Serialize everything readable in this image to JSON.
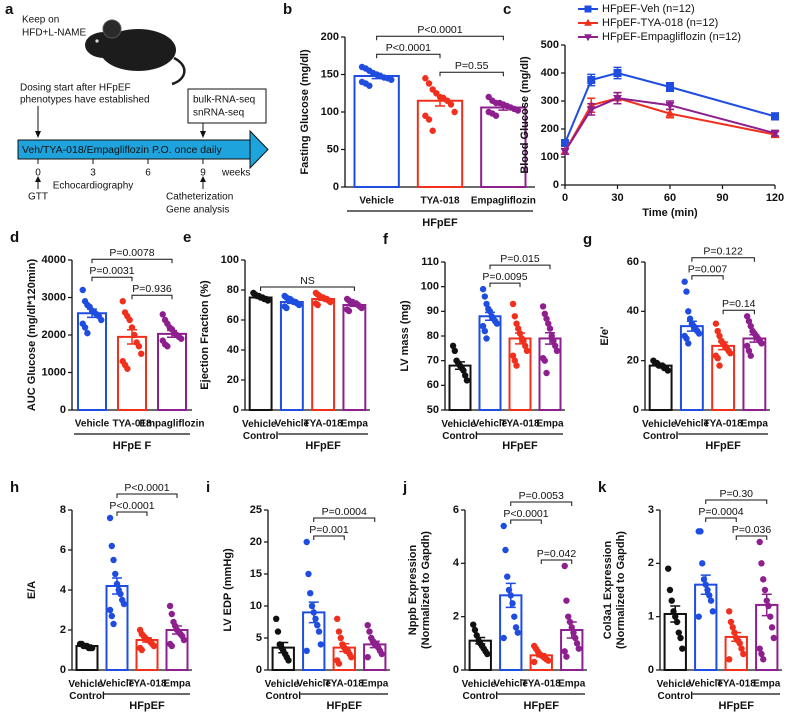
{
  "schematic": {
    "panel": "a",
    "diet": [
      "Keep on",
      "HFD+L-NAME"
    ],
    "dosing_note": [
      "Dosing start after HFpEF",
      "phenotypes have established"
    ],
    "sequencing": [
      "bulk-RNA-seq",
      "snRNA-seq"
    ],
    "treatment": "Veh/TYA-018/Empagliflozin P.O. once daily",
    "week_ticks": [
      0,
      3,
      6,
      9
    ],
    "week_unit": "weeks",
    "gtt": "GTT",
    "echo": "Echocardiography",
    "terminal": [
      "Catheterization",
      "Gene analysis"
    ]
  },
  "chart_data": [
    {
      "type": "bar",
      "panel": "b",
      "ylabel": "Fasting Glucose (mg/dl)",
      "categories": [
        "Vehicle",
        "TYA-018",
        "Empagliflozin"
      ],
      "colors": [
        "#1f4de0",
        "#f0301c",
        "#8e1f8e"
      ],
      "values": [
        148,
        115,
        106
      ],
      "errors": [
        3.5,
        7,
        3.5
      ],
      "points": [
        [
          160,
          158,
          155,
          152,
          150,
          148,
          146,
          145,
          143,
          140,
          138,
          135
        ],
        [
          145,
          138,
          130,
          125,
          120,
          118,
          115,
          110,
          100,
          95,
          90,
          75
        ],
        [
          120,
          115,
          112,
          112,
          110,
          108,
          106,
          104,
          102,
          100,
          98,
          95
        ]
      ],
      "ylim": [
        0,
        200
      ],
      "yticks": [
        0,
        50,
        100,
        150,
        200
      ],
      "group_label": "HFpEF",
      "comparisons": [
        {
          "groups": [
            0,
            2
          ],
          "label": "P<0.0001"
        },
        {
          "groups": [
            0,
            1
          ],
          "label": "P<0.0001"
        },
        {
          "groups": [
            1,
            2
          ],
          "label": "P=0.55"
        }
      ]
    },
    {
      "type": "line",
      "panel": "c",
      "ylabel": "Blood Glucose (mg/dl)",
      "xlabel": "Time (min)",
      "x": [
        0,
        15,
        30,
        60,
        120
      ],
      "xlim": [
        0,
        120
      ],
      "xticks": [
        0,
        30,
        60,
        90,
        120
      ],
      "ylim": [
        0,
        500
      ],
      "yticks": [
        0,
        100,
        200,
        300,
        400,
        500
      ],
      "legend": "top-left",
      "series": [
        {
          "name": "HFpEF-Veh (n=12)",
          "color": "#1f4de0",
          "marker": "square",
          "values": [
            150,
            375,
            400,
            350,
            245
          ],
          "errors": [
            10,
            20,
            20,
            15,
            12
          ]
        },
        {
          "name": "HFpEF-TYA-018 (n=12)",
          "color": "#f0301c",
          "marker": "triangle",
          "values": [
            120,
            285,
            310,
            255,
            180
          ],
          "errors": [
            10,
            25,
            20,
            15,
            10
          ]
        },
        {
          "name": "HFpEF-Empagliflozin (n=12)",
          "color": "#8e1f8e",
          "marker": "triangle-down",
          "values": [
            120,
            270,
            310,
            285,
            185
          ],
          "errors": [
            10,
            20,
            20,
            15,
            10
          ]
        }
      ]
    },
    {
      "type": "bar",
      "panel": "d",
      "ylabel": "AUC Glucose (mg/dl*120min)",
      "categories": [
        "Vehicle",
        "TYA-018",
        "Empagliflozin"
      ],
      "colors": [
        "#1f4de0",
        "#f0301c",
        "#8e1f8e"
      ],
      "values": [
        2580,
        1950,
        2030
      ],
      "errors": [
        110,
        190,
        90
      ],
      "points": [
        [
          3200,
          2900,
          2800,
          2750,
          2650,
          2600,
          2550,
          2500,
          2400,
          2300,
          2200,
          2050
        ],
        [
          2900,
          2600,
          2500,
          2400,
          2200,
          2000,
          1800,
          1700,
          1500,
          1300,
          1200,
          1100
        ],
        [
          2550,
          2400,
          2300,
          2200,
          2150,
          2050,
          2000,
          1950,
          1900,
          1850,
          1750,
          1700
        ]
      ],
      "ylim": [
        0,
        4000
      ],
      "yticks": [
        0,
        1000,
        2000,
        3000,
        4000
      ],
      "group_label": "HFpE F",
      "comparisons": [
        {
          "groups": [
            0,
            2
          ],
          "label": "P=0.0078"
        },
        {
          "groups": [
            0,
            1
          ],
          "label": "P=0.0031"
        },
        {
          "groups": [
            1,
            2
          ],
          "label": "P=0.936"
        }
      ]
    },
    {
      "type": "bar",
      "panel": "e",
      "ylabel": "Ejection Fraction (%)",
      "categories": [
        "Vehicle Control",
        "Vehicle",
        "TYA-018",
        "Empa"
      ],
      "colors": [
        "#111111",
        "#1f4de0",
        "#f0301c",
        "#8e1f8e"
      ],
      "values": [
        75,
        72,
        74,
        70
      ],
      "errors": [
        0.6,
        0.9,
        0.8,
        0.8
      ],
      "points": [
        [
          78,
          77,
          76,
          76,
          75,
          75,
          74,
          74,
          73
        ],
        [
          76,
          75,
          74,
          74,
          73,
          72,
          72,
          71,
          70,
          69,
          68
        ],
        [
          78,
          77,
          76,
          75,
          75,
          74,
          74,
          73,
          72,
          71,
          70
        ],
        [
          74,
          73,
          72,
          72,
          71,
          71,
          70,
          69,
          68,
          67,
          66
        ]
      ],
      "ylim": [
        0,
        100
      ],
      "yticks": [
        0,
        20,
        40,
        60,
        80,
        100
      ],
      "group_label": "HFpEF",
      "group_span": [
        1,
        3
      ],
      "comparisons": [
        {
          "groups": [
            0,
            3
          ],
          "label": "NS"
        }
      ]
    },
    {
      "type": "bar",
      "panel": "f",
      "ylabel": "LV mass (mg)",
      "categories": [
        "Vehicle Control",
        "Vehicle",
        "TYA-018",
        "Empa"
      ],
      "colors": [
        "#111111",
        "#1f4de0",
        "#f0301c",
        "#8e1f8e"
      ],
      "values": [
        68,
        88,
        79,
        79
      ],
      "errors": [
        1.5,
        1.6,
        2.2,
        2.3
      ],
      "points": [
        [
          76,
          74,
          70,
          69,
          68,
          67,
          66,
          64,
          62
        ],
        [
          99,
          96,
          93,
          91,
          90,
          88,
          87,
          86,
          85,
          84,
          82,
          79
        ],
        [
          93,
          88,
          85,
          83,
          81,
          79,
          78,
          76,
          74,
          72,
          70,
          68
        ],
        [
          92,
          89,
          87,
          85,
          83,
          80,
          78,
          76,
          74,
          71,
          70,
          65
        ]
      ],
      "ylim": [
        50,
        110
      ],
      "yticks": [
        50,
        60,
        70,
        80,
        90,
        100,
        110
      ],
      "group_label": "HFpEF",
      "group_span": [
        1,
        3
      ],
      "comparisons": [
        {
          "groups": [
            1,
            3
          ],
          "label": "P=0.015"
        },
        {
          "groups": [
            1,
            2
          ],
          "label": "P=0.0095"
        }
      ]
    },
    {
      "type": "bar",
      "panel": "g",
      "ylabel": "E/e'",
      "categories": [
        "Vehicle Control",
        "Vehicle",
        "TYA-018",
        "Empa"
      ],
      "colors": [
        "#111111",
        "#1f4de0",
        "#f0301c",
        "#8e1f8e"
      ],
      "values": [
        18,
        34,
        26,
        29
      ],
      "errors": [
        0.4,
        2,
        1.5,
        1.5
      ],
      "points": [
        [
          20,
          19,
          19,
          18,
          18,
          18,
          17,
          17,
          16
        ],
        [
          52,
          48,
          40,
          37,
          35,
          34,
          33,
          32,
          31,
          30,
          29,
          27
        ],
        [
          35,
          32,
          30,
          28,
          27,
          26,
          25,
          24,
          23,
          22,
          21,
          18
        ],
        [
          38,
          36,
          34,
          32,
          31,
          30,
          29,
          28,
          27,
          26,
          24,
          22
        ]
      ],
      "ylim": [
        0,
        60
      ],
      "yticks": [
        0,
        20,
        40,
        60
      ],
      "group_label": "HFpEF",
      "group_span": [
        1,
        3
      ],
      "comparisons": [
        {
          "groups": [
            1,
            3
          ],
          "label": "P=0.122"
        },
        {
          "groups": [
            1,
            2
          ],
          "label": "P=0.007"
        },
        {
          "groups": [
            2,
            3
          ],
          "label": "P=0.14"
        }
      ]
    },
    {
      "type": "bar",
      "panel": "h",
      "ylabel": "E/A",
      "categories": [
        "Vehicle Control",
        "Vehicle",
        "TYA-018",
        "Empa"
      ],
      "colors": [
        "#111111",
        "#1f4de0",
        "#f0301c",
        "#8e1f8e"
      ],
      "values": [
        1.2,
        4.2,
        1.5,
        2.0
      ],
      "errors": [
        0.05,
        0.4,
        0.1,
        0.2
      ],
      "points": [
        [
          1.3,
          1.3,
          1.2,
          1.2,
          1.2,
          1.1,
          1.1,
          1.1
        ],
        [
          7.6,
          6.2,
          5.5,
          4.8,
          4.3,
          4.0,
          3.8,
          3.5,
          3.3,
          3.0,
          2.7,
          2.3
        ],
        [
          2.0,
          1.8,
          1.7,
          1.6,
          1.5,
          1.5,
          1.4,
          1.3,
          1.2,
          1.1,
          1.0
        ],
        [
          3.2,
          2.8,
          2.4,
          2.2,
          2.0,
          1.9,
          1.8,
          1.7,
          1.5,
          1.3,
          1.2
        ]
      ],
      "ylim": [
        0,
        8
      ],
      "yticks": [
        0,
        2,
        4,
        6,
        8
      ],
      "group_label": "HFpEF",
      "group_span": [
        1,
        3
      ],
      "comparisons": [
        {
          "groups": [
            1,
            3
          ],
          "label": "P<0.0001"
        },
        {
          "groups": [
            1,
            2
          ],
          "label": "P<0.0001"
        }
      ]
    },
    {
      "type": "bar",
      "panel": "i",
      "ylabel": "LV EDP (mmHg)",
      "categories": [
        "Vehicle Control",
        "Vehicle",
        "TYA-018",
        "Empa"
      ],
      "colors": [
        "#111111",
        "#1f4de0",
        "#f0301c",
        "#8e1f8e"
      ],
      "values": [
        3.5,
        9,
        3.5,
        4
      ],
      "errors": [
        0.8,
        1.6,
        0.6,
        0.5
      ],
      "points": [
        [
          8,
          6,
          4,
          3.5,
          3,
          2.5,
          2,
          1.5
        ],
        [
          20,
          15,
          12,
          10,
          9,
          8,
          7,
          6,
          4,
          3
        ],
        [
          8,
          6,
          5,
          4,
          3.5,
          3,
          3,
          2.5,
          2,
          1.5,
          1
        ],
        [
          7,
          6,
          5,
          4.5,
          4,
          4,
          3.5,
          3,
          2.5,
          2
        ]
      ],
      "ylim": [
        0,
        25
      ],
      "yticks": [
        0,
        5,
        10,
        15,
        20,
        25
      ],
      "group_label": "HFpEF",
      "group_span": [
        1,
        3
      ],
      "comparisons": [
        {
          "groups": [
            1,
            3
          ],
          "label": "P=0.0004"
        },
        {
          "groups": [
            1,
            2
          ],
          "label": "P=0.001"
        }
      ]
    },
    {
      "type": "bar",
      "panel": "j",
      "ylabel": [
        "Nppb Expression",
        "(Normalized to Gapdh)"
      ],
      "categories": [
        "Vehicle Control",
        "Vehicle",
        "TYA-018",
        "Empa"
      ],
      "colors": [
        "#111111",
        "#1f4de0",
        "#f0301c",
        "#8e1f8e"
      ],
      "values": [
        1.1,
        2.8,
        0.55,
        1.5
      ],
      "errors": [
        0.12,
        0.45,
        0.06,
        0.3
      ],
      "points": [
        [
          1.7,
          1.5,
          1.3,
          1.1,
          1.0,
          0.9,
          0.8,
          0.7,
          0.6
        ],
        [
          5.4,
          4.5,
          3.5,
          3.0,
          2.8,
          2.5,
          2.0,
          1.6,
          1.4,
          1.2
        ],
        [
          0.9,
          0.8,
          0.7,
          0.6,
          0.55,
          0.5,
          0.45,
          0.4,
          0.35,
          0.3
        ],
        [
          3.9,
          2.6,
          2.0,
          1.8,
          1.6,
          1.4,
          1.2,
          1.0,
          0.8,
          0.7,
          0.5
        ]
      ],
      "ylim": [
        0,
        6
      ],
      "yticks": [
        0,
        2,
        4,
        6
      ],
      "group_label": "HFpEF",
      "group_span": [
        1,
        3
      ],
      "comparisons": [
        {
          "groups": [
            1,
            3
          ],
          "label": "P=0.0053"
        },
        {
          "groups": [
            1,
            2
          ],
          "label": "P<0.0001"
        },
        {
          "groups": [
            2,
            3
          ],
          "label": "P=0.042"
        }
      ]
    },
    {
      "type": "bar",
      "panel": "k",
      "ylabel": [
        "Col3a1 Expression",
        "(Normalized to Gapdh)"
      ],
      "categories": [
        "Vehicle Control",
        "Vehicle",
        "TYA-018",
        "Empa"
      ],
      "colors": [
        "#111111",
        "#1f4de0",
        "#f0301c",
        "#8e1f8e"
      ],
      "values": [
        1.05,
        1.6,
        0.62,
        1.22
      ],
      "errors": [
        0.15,
        0.18,
        0.08,
        0.2
      ],
      "points": [
        [
          1.9,
          1.5,
          1.3,
          1.1,
          1.0,
          0.9,
          0.7,
          0.6,
          0.4
        ],
        [
          2.6,
          2.6,
          2.0,
          1.7,
          1.6,
          1.5,
          1.4,
          1.3,
          1.1,
          1.0
        ],
        [
          1.1,
          0.9,
          0.8,
          0.7,
          0.6,
          0.55,
          0.5,
          0.4,
          0.3,
          0.2
        ],
        [
          2.4,
          2.0,
          1.7,
          1.5,
          1.3,
          1.2,
          1.0,
          0.8,
          0.6,
          0.4,
          0.3,
          0.2
        ]
      ],
      "ylim": [
        0,
        3
      ],
      "yticks": [
        0,
        1,
        2,
        3
      ],
      "group_label": "HFpEF",
      "group_span": [
        1,
        3
      ],
      "comparisons": [
        {
          "groups": [
            1,
            3
          ],
          "label": "P=0.30"
        },
        {
          "groups": [
            1,
            2
          ],
          "label": "P=0.0004"
        },
        {
          "groups": [
            2,
            3
          ],
          "label": "P=0.036"
        }
      ]
    }
  ]
}
